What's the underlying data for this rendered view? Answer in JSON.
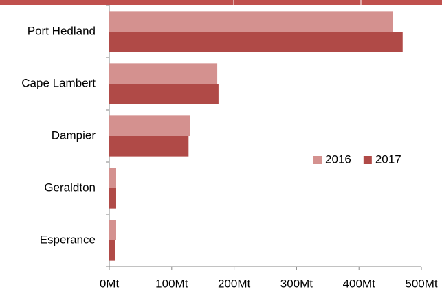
{
  "chart_data": {
    "type": "bar",
    "orientation": "horizontal",
    "categories": [
      "Port Hedland",
      "Cape Lambert",
      "Dampier",
      "Geraldton",
      "Esperance"
    ],
    "series": [
      {
        "name": "2016",
        "color": "#d4918f",
        "values": [
          454,
          173,
          129,
          11,
          11
        ]
      },
      {
        "name": "2017",
        "color": "#b04a47",
        "values": [
          470,
          175,
          127,
          11,
          9
        ]
      }
    ],
    "xlim": [
      0,
      500
    ],
    "xticks": [
      {
        "value": 0,
        "label": "0Mt"
      },
      {
        "value": 100,
        "label": "100Mt"
      },
      {
        "value": 200,
        "label": "200Mt"
      },
      {
        "value": 300,
        "label": "300Mt"
      },
      {
        "value": 400,
        "label": "400Mt"
      },
      {
        "value": 500,
        "label": "500Mt"
      }
    ],
    "grid": false,
    "legend": "right"
  }
}
